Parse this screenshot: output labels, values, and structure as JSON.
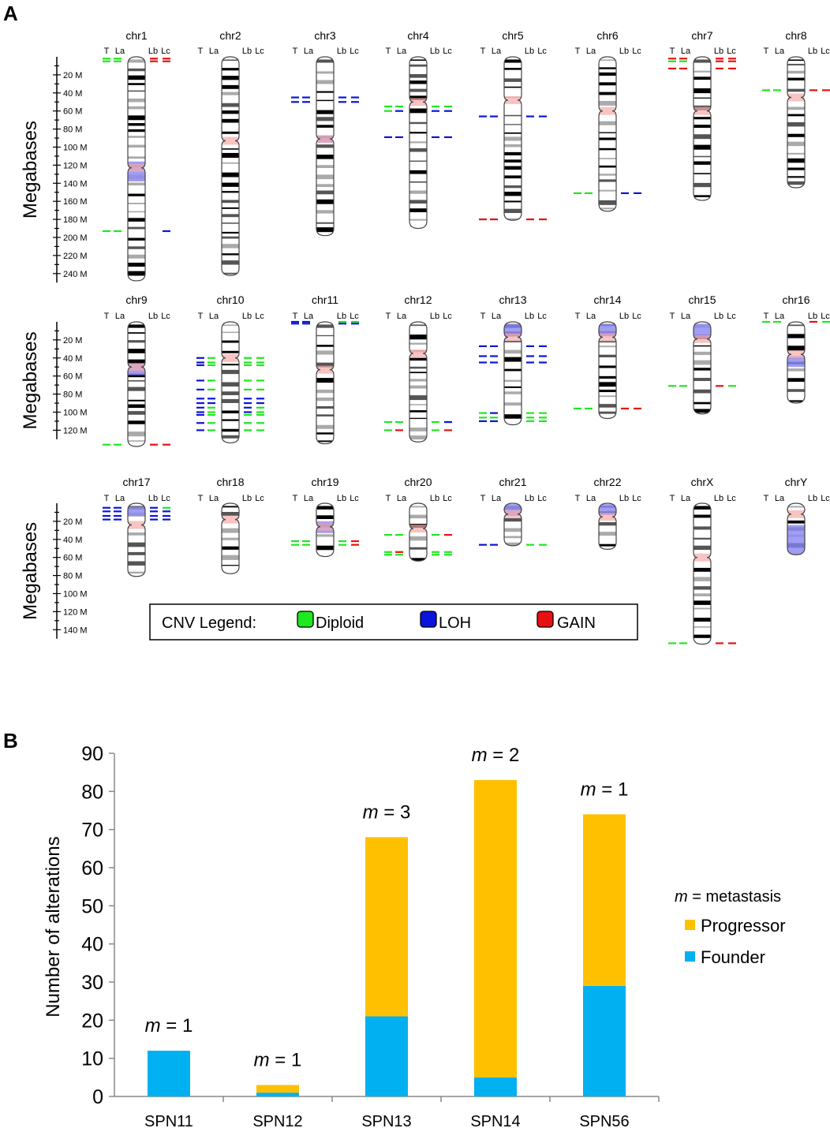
{
  "panel_a": {
    "label": "A",
    "y_axis_label": "Megabases",
    "track_labels": [
      "T",
      "La",
      "Lb",
      "Lc"
    ],
    "rows": [
      {
        "ticks": [
          "20 M",
          "40 M",
          "60 M",
          "80 M",
          "100 M",
          "120 M",
          "140 M",
          "160 M",
          "180 M",
          "200 M",
          "220 M",
          "240 M"
        ]
      },
      {
        "ticks": [
          "20 M",
          "40 M",
          "60 M",
          "80 M",
          "100 M",
          "120 M"
        ]
      },
      {
        "ticks": [
          "20 M",
          "40 M",
          "60 M",
          "80 M",
          "100 M",
          "120 M",
          "140 M"
        ]
      }
    ],
    "chromosomes": [
      {
        "name": "chr1",
        "row": 0,
        "length_mb": 248,
        "centromere_mb": 123,
        "shaded": [
          [
            116,
            138
          ]
        ],
        "cnv": [
          {
            "pos_mb": 2,
            "tracks": {
              "T": "diploid",
              "La": "diploid",
              "Lb": "gain",
              "Lc": "gain"
            }
          },
          {
            "pos_mb": 5,
            "tracks": {
              "T": "diploid",
              "La": "diploid",
              "Lb": "gain",
              "Lc": "gain"
            }
          },
          {
            "pos_mb": 193,
            "tracks": {
              "T": "diploid",
              "La": "diploid",
              "Lc": "loh"
            }
          }
        ]
      },
      {
        "name": "chr2",
        "row": 0,
        "length_mb": 242,
        "centromere_mb": 93,
        "shaded": [],
        "cnv": []
      },
      {
        "name": "chr3",
        "row": 0,
        "length_mb": 198,
        "centromere_mb": 91,
        "shaded": [
          [
            88,
            95
          ]
        ],
        "cnv": [
          {
            "pos_mb": 45,
            "tracks": {
              "T": "loh",
              "La": "loh",
              "Lb": "loh",
              "Lc": "loh"
            }
          },
          {
            "pos_mb": 50,
            "tracks": {
              "T": "loh",
              "La": "loh",
              "Lb": "loh",
              "Lc": "loh"
            }
          }
        ]
      },
      {
        "name": "chr4",
        "row": 0,
        "length_mb": 190,
        "centromere_mb": 50,
        "shaded": [],
        "cnv": [
          {
            "pos_mb": 55,
            "tracks": {
              "T": "diploid",
              "La": "diploid",
              "Lb": "diploid",
              "Lc": "diploid"
            }
          },
          {
            "pos_mb": 60,
            "tracks": {
              "T": "diploid",
              "La": "loh",
              "Lb": "loh",
              "Lc": "loh"
            }
          },
          {
            "pos_mb": 89,
            "tracks": {
              "T": "loh",
              "La": "loh",
              "Lb": "loh",
              "Lc": "loh"
            }
          }
        ]
      },
      {
        "name": "chr5",
        "row": 0,
        "length_mb": 181,
        "centromere_mb": 48,
        "shaded": [],
        "cnv": [
          {
            "pos_mb": 66,
            "tracks": {
              "T": "loh",
              "La": "loh",
              "Lb": "loh",
              "Lc": "loh"
            }
          },
          {
            "pos_mb": 180,
            "tracks": {
              "T": "gain",
              "La": "gain",
              "Lb": "gain",
              "Lc": "gain"
            }
          }
        ]
      },
      {
        "name": "chr6",
        "row": 0,
        "length_mb": 171,
        "centromere_mb": 60,
        "shaded": [],
        "cnv": [
          {
            "pos_mb": 151,
            "tracks": {
              "T": "diploid",
              "La": "diploid",
              "Lb": "loh",
              "Lc": "loh"
            }
          }
        ]
      },
      {
        "name": "chr7",
        "row": 0,
        "length_mb": 159,
        "centromere_mb": 60,
        "shaded": [],
        "cnv": [
          {
            "pos_mb": 2,
            "tracks": {
              "T": "gain",
              "La": "gain",
              "Lb": "gain",
              "Lc": "gain"
            }
          },
          {
            "pos_mb": 5,
            "tracks": {
              "T": "diploid",
              "La": "diploid",
              "Lb": "gain",
              "Lc": "gain"
            }
          },
          {
            "pos_mb": 13,
            "tracks": {
              "T": "gain",
              "La": "gain",
              "Lb": "gain",
              "Lc": "gain"
            }
          }
        ]
      },
      {
        "name": "chr8",
        "row": 0,
        "length_mb": 145,
        "centromere_mb": 45,
        "shaded": [],
        "cnv": [
          {
            "pos_mb": 37,
            "tracks": {
              "T": "diploid",
              "La": "diploid",
              "Lb": "gain",
              "Lc": "gain"
            }
          }
        ]
      },
      {
        "name": "chr9",
        "row": 1,
        "length_mb": 138,
        "centromere_mb": 50,
        "shaded": [
          [
            46,
            59
          ]
        ],
        "cnv": [
          {
            "pos_mb": 136,
            "tracks": {
              "T": "diploid",
              "La": "diploid",
              "Lb": "gain",
              "Lc": "gain"
            }
          }
        ]
      },
      {
        "name": "chr10",
        "row": 1,
        "length_mb": 134,
        "centromere_mb": 40,
        "shaded": [],
        "cnv": [
          {
            "pos_mb": 40,
            "tracks": {
              "T": "loh",
              "La": "diploid",
              "Lb": "diploid",
              "Lc": "diploid"
            }
          },
          {
            "pos_mb": 45,
            "tracks": {
              "T": "loh",
              "La": "diploid",
              "Lb": "diploid",
              "Lc": "diploid"
            }
          },
          {
            "pos_mb": 48,
            "tracks": {
              "T": "loh",
              "La": "diploid",
              "Lb": "diploid",
              "Lc": "diploid"
            }
          },
          {
            "pos_mb": 65,
            "tracks": {
              "T": "loh",
              "La": "diploid",
              "Lb": "diploid",
              "Lc": "diploid"
            }
          },
          {
            "pos_mb": 75,
            "tracks": {
              "T": "loh",
              "La": "diploid",
              "Lb": "diploid",
              "Lc": "diploid"
            }
          },
          {
            "pos_mb": 85,
            "tracks": {
              "T": "loh",
              "La": "loh",
              "Lb": "loh",
              "Lc": "loh"
            }
          },
          {
            "pos_mb": 90,
            "tracks": {
              "T": "loh",
              "La": "loh",
              "Lb": "loh",
              "Lc": "loh"
            }
          },
          {
            "pos_mb": 95,
            "tracks": {
              "T": "loh",
              "La": "diploid",
              "Lb": "loh",
              "Lc": "diploid"
            }
          },
          {
            "pos_mb": 100,
            "tracks": {
              "T": "loh",
              "La": "diploid",
              "Lb": "loh",
              "Lc": "diploid"
            }
          },
          {
            "pos_mb": 103,
            "tracks": {
              "T": "loh",
              "La": "diploid",
              "Lb": "diploid",
              "Lc": "diploid"
            }
          },
          {
            "pos_mb": 112,
            "tracks": {
              "T": "loh",
              "La": "diploid",
              "Lb": "diploid",
              "Lc": "diploid"
            }
          },
          {
            "pos_mb": 120,
            "tracks": {
              "T": "loh",
              "La": "diploid",
              "Lb": "diploid",
              "Lc": "diploid"
            }
          }
        ]
      },
      {
        "name": "chr11",
        "row": 1,
        "length_mb": 135,
        "centromere_mb": 53,
        "shaded": [],
        "cnv": [
          {
            "pos_mb": 0,
            "tracks": {
              "T": "loh",
              "La": "loh",
              "Lb": "diploid",
              "Lc": "diploid"
            }
          },
          {
            "pos_mb": 2,
            "tracks": {
              "T": "loh",
              "La": "loh",
              "Lb": "loh",
              "Lc": "loh"
            }
          }
        ]
      },
      {
        "name": "chr12",
        "row": 1,
        "length_mb": 133,
        "centromere_mb": 35,
        "shaded": [],
        "cnv": [
          {
            "pos_mb": 111,
            "tracks": {
              "T": "diploid",
              "La": "diploid",
              "Lb": "diploid",
              "Lc": "loh"
            }
          },
          {
            "pos_mb": 120,
            "tracks": {
              "T": "diploid",
              "La": "gain",
              "Lb": "diploid",
              "Lc": "gain"
            }
          }
        ]
      },
      {
        "name": "chr13",
        "row": 1,
        "length_mb": 114,
        "centromere_mb": 17,
        "shaded": [
          [
            2,
            16
          ]
        ],
        "cnv": [
          {
            "pos_mb": 27,
            "tracks": {
              "T": "loh",
              "La": "loh",
              "Lb": "loh",
              "Lc": "loh"
            }
          },
          {
            "pos_mb": 38,
            "tracks": {
              "T": "loh",
              "La": "loh",
              "Lb": "loh",
              "Lc": "loh"
            }
          },
          {
            "pos_mb": 45,
            "tracks": {
              "T": "loh",
              "La": "loh",
              "Lb": "loh",
              "Lc": "loh"
            }
          },
          {
            "pos_mb": 101,
            "tracks": {
              "T": "diploid",
              "La": "loh",
              "Lb": "diploid",
              "Lc": "diploid"
            }
          },
          {
            "pos_mb": 106,
            "tracks": {
              "T": "diploid",
              "La": "diploid",
              "Lb": "diploid",
              "Lc": "diploid"
            }
          },
          {
            "pos_mb": 110,
            "tracks": {
              "T": "loh",
              "La": "loh",
              "Lb": "diploid",
              "Lc": "diploid"
            }
          }
        ]
      },
      {
        "name": "chr14",
        "row": 1,
        "length_mb": 107,
        "centromere_mb": 17,
        "shaded": [
          [
            2,
            16
          ]
        ],
        "cnv": [
          {
            "pos_mb": 96,
            "tracks": {
              "T": "diploid",
              "La": "diploid",
              "Lb": "gain",
              "Lc": "gain"
            }
          }
        ]
      },
      {
        "name": "chr15",
        "row": 1,
        "length_mb": 102,
        "centromere_mb": 19,
        "shaded": [
          [
            2,
            18
          ]
        ],
        "cnv": [
          {
            "pos_mb": 71,
            "tracks": {
              "T": "diploid",
              "La": "diploid",
              "Lb": "gain",
              "Lc": "diploid"
            }
          }
        ]
      },
      {
        "name": "chr16",
        "row": 1,
        "length_mb": 90,
        "centromere_mb": 36,
        "shaded": [
          [
            38,
            50
          ]
        ],
        "cnv": [
          {
            "pos_mb": 0,
            "tracks": {
              "T": "diploid",
              "La": "diploid",
              "Lb": "gain",
              "Lc": "diploid"
            }
          }
        ]
      },
      {
        "name": "chr17",
        "row": 2,
        "length_mb": 81,
        "centromere_mb": 24,
        "shaded": [
          [
            4,
            14
          ]
        ],
        "cnv": [
          {
            "pos_mb": 5,
            "tracks": {
              "T": "loh",
              "La": "loh",
              "Lb": "loh",
              "Lc": "diploid"
            }
          },
          {
            "pos_mb": 9,
            "tracks": {
              "T": "loh",
              "La": "loh",
              "Lb": "loh",
              "Lc": "loh"
            }
          },
          {
            "pos_mb": 14,
            "tracks": {
              "T": "loh",
              "La": "loh",
              "Lb": "loh",
              "Lc": "loh"
            }
          },
          {
            "pos_mb": 18,
            "tracks": {
              "T": "loh",
              "La": "loh",
              "Lb": "loh",
              "Lc": "loh"
            }
          }
        ]
      },
      {
        "name": "chr18",
        "row": 2,
        "length_mb": 78,
        "centromere_mb": 18,
        "shaded": [],
        "cnv": []
      },
      {
        "name": "chr19",
        "row": 2,
        "length_mb": 59,
        "centromere_mb": 26,
        "shaded": [
          [
            20,
            33
          ]
        ],
        "cnv": [
          {
            "pos_mb": 42,
            "tracks": {
              "T": "diploid",
              "La": "diploid",
              "Lb": "diploid",
              "Lc": "gain"
            }
          },
          {
            "pos_mb": 46,
            "tracks": {
              "T": "diploid",
              "La": "diploid",
              "Lb": "diploid",
              "Lc": "gain"
            }
          }
        ]
      },
      {
        "name": "chr20",
        "row": 2,
        "length_mb": 64,
        "centromere_mb": 28,
        "shaded": [],
        "cnv": [
          {
            "pos_mb": 35,
            "tracks": {
              "T": "diploid",
              "La": "diploid",
              "Lb": "diploid",
              "Lc": "gain"
            }
          },
          {
            "pos_mb": 54,
            "tracks": {
              "T": "diploid",
              "La": "gain",
              "Lb": "diploid",
              "Lc": "diploid"
            }
          },
          {
            "pos_mb": 57,
            "tracks": {
              "T": "diploid",
              "La": "diploid",
              "Lb": "diploid",
              "Lc": "diploid"
            }
          }
        ]
      },
      {
        "name": "chr21",
        "row": 2,
        "length_mb": 47,
        "centromere_mb": 12,
        "shaded": [
          [
            1,
            14
          ]
        ],
        "cnv": [
          {
            "pos_mb": 46,
            "tracks": {
              "T": "loh",
              "La": "loh",
              "Lb": "diploid",
              "Lc": "diploid"
            }
          }
        ]
      },
      {
        "name": "chr22",
        "row": 2,
        "length_mb": 51,
        "centromere_mb": 15,
        "shaded": [
          [
            1,
            13
          ]
        ],
        "cnv": []
      },
      {
        "name": "chrX",
        "row": 2,
        "length_mb": 156,
        "centromere_mb": 60,
        "shaded": [],
        "cnv": [
          {
            "pos_mb": 155,
            "tracks": {
              "T": "diploid",
              "La": "diploid",
              "Lb": "gain",
              "Lc": "gain"
            }
          }
        ]
      },
      {
        "name": "chrY",
        "row": 2,
        "length_mb": 57,
        "centromere_mb": 12,
        "shaded": [
          [
            24,
            57
          ]
        ],
        "cnv": []
      }
    ],
    "legend": {
      "title": "CNV Legend:",
      "items": [
        {
          "label": "Diploid",
          "color": "#1ee81e"
        },
        {
          "label": "LOH",
          "color": "#0a14dc"
        },
        {
          "label": "GAIN",
          "color": "#e81010"
        }
      ]
    },
    "colors": {
      "diploid": "#1ee81e",
      "loh": "#0a14dc",
      "gain": "#e81010",
      "shade": "#8f8cf2",
      "centromere": "#f4a9a9"
    }
  },
  "panel_b": {
    "label": "B",
    "legend_title_italic": "m",
    "legend_title_rest": " = metastasis",
    "legend_items": [
      {
        "label": "Progressor",
        "color": "#ffc000"
      },
      {
        "label": "Founder",
        "color": "#00b0f0"
      }
    ],
    "annotation_italic": "m",
    "annotation_sep": " = "
  },
  "chart_data": {
    "type": "bar",
    "stacked": true,
    "title": "",
    "xlabel": "",
    "ylabel": "Number of alterations",
    "ylim": [
      0,
      90
    ],
    "yticks": [
      0,
      10,
      20,
      30,
      40,
      50,
      60,
      70,
      80,
      90
    ],
    "categories": [
      "SPN11",
      "SPN12",
      "SPN13",
      "SPN14",
      "SPN56"
    ],
    "series": [
      {
        "name": "Founder",
        "color": "#00b0f0",
        "values": [
          12,
          1,
          21,
          5,
          29
        ]
      },
      {
        "name": "Progressor",
        "color": "#ffc000",
        "values": [
          0,
          2,
          47,
          78,
          45
        ]
      }
    ],
    "annotations": [
      "1",
      "1",
      "3",
      "2",
      "1"
    ],
    "legend": "right"
  }
}
